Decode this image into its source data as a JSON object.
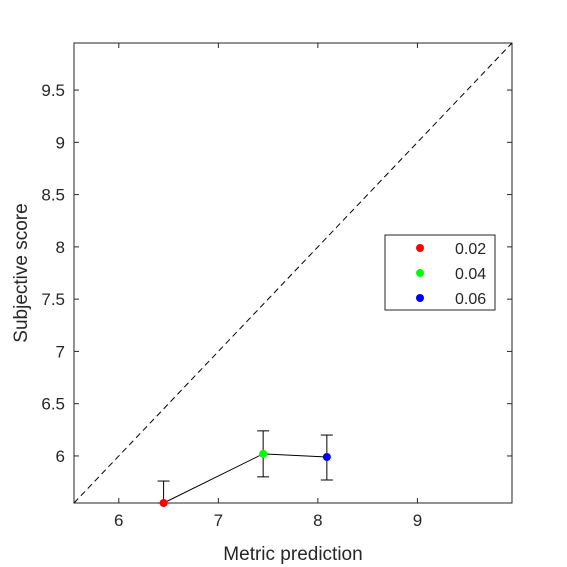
{
  "chart_data": {
    "type": "scatter",
    "xlabel": "Metric prediction",
    "ylabel": "Subjective score",
    "xlim": [
      5.55,
      9.95
    ],
    "ylim": [
      5.55,
      9.95
    ],
    "x_ticks": [
      6,
      7,
      8,
      9
    ],
    "y_ticks": [
      6,
      6.5,
      7,
      7.5,
      8,
      8.5,
      9,
      9.5
    ],
    "x_tick_labels": [
      "6",
      "7",
      "8",
      "9"
    ],
    "y_tick_labels": [
      "6",
      "6.5",
      "7",
      "7.5",
      "8",
      "8.5",
      "9",
      "9.5"
    ],
    "grid": false,
    "reference_line": {
      "from": [
        5.55,
        5.55
      ],
      "to": [
        9.95,
        9.95
      ],
      "style": "dashed",
      "color": "#000000"
    },
    "connecting_line_color": "#000000",
    "points": [
      {
        "label": "0.02",
        "x": 6.45,
        "y": 5.55,
        "err_low": 5.55,
        "err_high": 5.76,
        "color": "#ff0000"
      },
      {
        "label": "0.04",
        "x": 7.45,
        "y": 6.02,
        "err_low": 5.8,
        "err_high": 6.24,
        "color": "#00ff00"
      },
      {
        "label": "0.06",
        "x": 8.09,
        "y": 5.99,
        "err_low": 5.77,
        "err_high": 6.2,
        "color": "#0000ff"
      }
    ],
    "legend": {
      "placement": "right",
      "entries": [
        {
          "label": "0.02",
          "color": "#ff0000"
        },
        {
          "label": "0.04",
          "color": "#00ff00"
        },
        {
          "label": "0.06",
          "color": "#0000ff"
        }
      ]
    }
  }
}
